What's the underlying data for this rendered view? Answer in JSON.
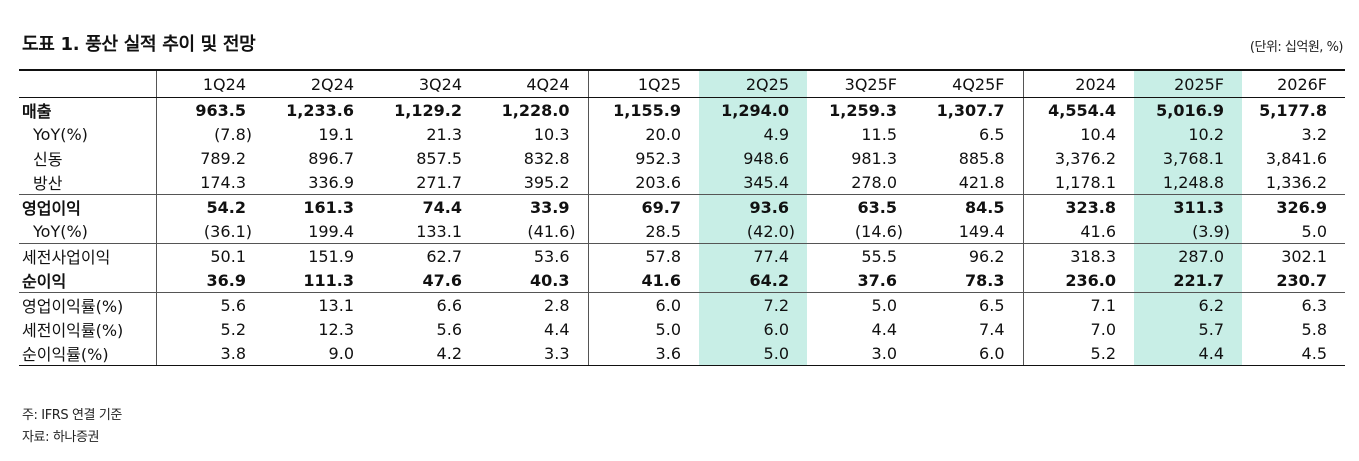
{
  "title": "도표 1. 풍산 실적 추이 및 전망",
  "unit_note": "(단위: 십억원, %)",
  "columns": [
    "1Q24",
    "2Q24",
    "3Q24",
    "4Q24",
    "1Q25",
    "2Q25",
    "3Q25F",
    "4Q25F",
    "2024",
    "2025F",
    "2026F"
  ],
  "highlight_columns": [
    "2Q25",
    "2025F"
  ],
  "highlight_color": "#c8eee6",
  "rows": [
    {
      "label": "매출",
      "values": [
        "963.5",
        "1,233.6",
        "1,129.2",
        "1,228.0",
        "1,155.9",
        "1,294.0",
        "1,259.3",
        "1,307.7",
        "4,554.4",
        "5,016.9",
        "5,177.8"
      ]
    },
    {
      "label": "YoY(%)",
      "values": [
        "(7.8)",
        "19.1",
        "21.3",
        "10.3",
        "20.0",
        "4.9",
        "11.5",
        "6.5",
        "10.4",
        "10.2",
        "3.2"
      ]
    },
    {
      "label": "신동",
      "values": [
        "789.2",
        "896.7",
        "857.5",
        "832.8",
        "952.3",
        "948.6",
        "981.3",
        "885.8",
        "3,376.2",
        "3,768.1",
        "3,841.6"
      ]
    },
    {
      "label": "방산",
      "values": [
        "174.3",
        "336.9",
        "271.7",
        "395.2",
        "203.6",
        "345.4",
        "278.0",
        "421.8",
        "1,178.1",
        "1,248.8",
        "1,336.2"
      ]
    },
    {
      "label": "영업이익",
      "values": [
        "54.2",
        "161.3",
        "74.4",
        "33.9",
        "69.7",
        "93.6",
        "63.5",
        "84.5",
        "323.8",
        "311.3",
        "326.9"
      ]
    },
    {
      "label": "YoY(%)",
      "values": [
        "(36.1)",
        "199.4",
        "133.1",
        "(41.6)",
        "28.5",
        "(42.0)",
        "(14.6)",
        "149.4",
        "41.6",
        "(3.9)",
        "5.0"
      ]
    },
    {
      "label": "세전사업이익",
      "values": [
        "50.1",
        "151.9",
        "62.7",
        "53.6",
        "57.8",
        "77.4",
        "55.5",
        "96.2",
        "318.3",
        "287.0",
        "302.1"
      ]
    },
    {
      "label": "순이익",
      "values": [
        "36.9",
        "111.3",
        "47.6",
        "40.3",
        "41.6",
        "64.2",
        "37.6",
        "78.3",
        "236.0",
        "221.7",
        "230.7"
      ]
    },
    {
      "label": "영업이익률(%)",
      "values": [
        "5.6",
        "13.1",
        "6.6",
        "2.8",
        "6.0",
        "7.2",
        "5.0",
        "6.5",
        "7.1",
        "6.2",
        "6.3"
      ]
    },
    {
      "label": "세전이익률(%)",
      "values": [
        "5.2",
        "12.3",
        "5.6",
        "4.4",
        "5.0",
        "6.0",
        "4.4",
        "7.4",
        "7.0",
        "5.7",
        "5.8"
      ]
    },
    {
      "label": "순이익률(%)",
      "values": [
        "3.8",
        "9.0",
        "4.2",
        "3.3",
        "3.6",
        "5.0",
        "3.0",
        "6.0",
        "5.2",
        "4.4",
        "4.5"
      ]
    }
  ],
  "notes": [
    "주: IFRS 연결 기준",
    "자료: 하나증권"
  ]
}
